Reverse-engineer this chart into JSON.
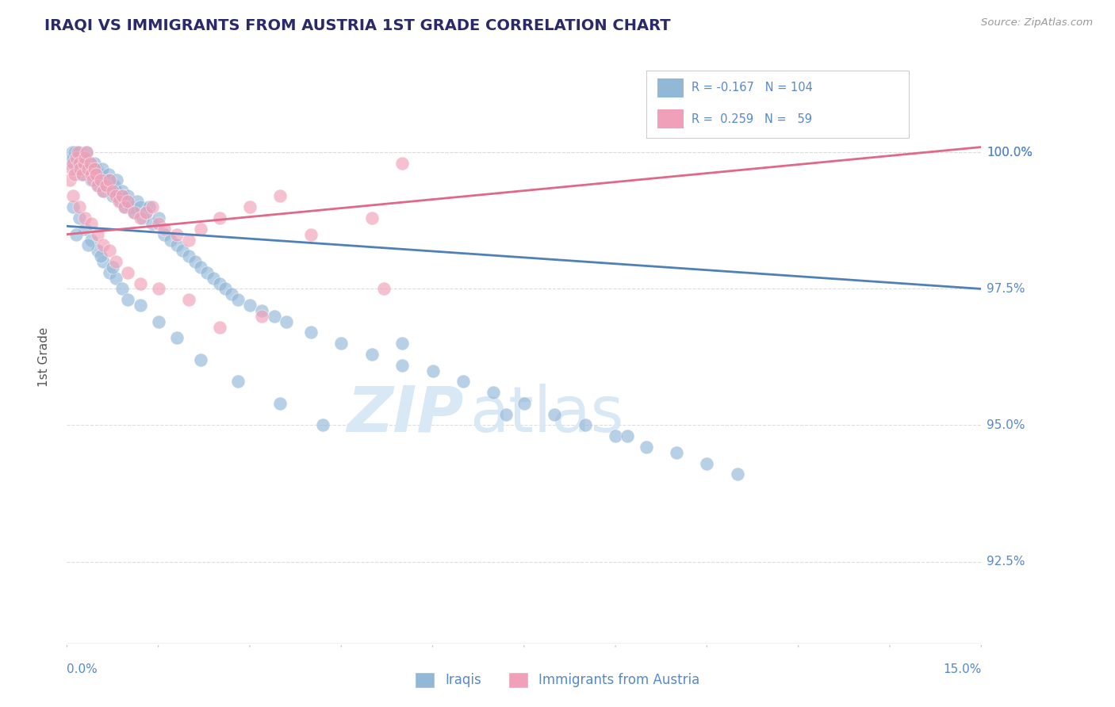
{
  "title": "IRAQI VS IMMIGRANTS FROM AUSTRIA 1ST GRADE CORRELATION CHART",
  "source_text": "Source: ZipAtlas.com",
  "ylabel": "1st Grade",
  "xmin": 0.0,
  "xmax": 15.0,
  "ymin": 91.0,
  "ymax": 101.5,
  "yticks": [
    92.5,
    95.0,
    97.5,
    100.0
  ],
  "ytick_labels": [
    "92.5%",
    "95.0%",
    "97.5%",
    "100.0%"
  ],
  "blue_color": "#92b8d8",
  "pink_color": "#f0a0b8",
  "blue_line_color": "#5080b8",
  "pink_line_color": "#e06888",
  "title_color": "#2a2a6a",
  "axis_label_color": "#5588cc",
  "watermark_color": "#d8e8f4",
  "background_color": "#ffffff",
  "grid_color": "#dddddd",
  "blue_r": -0.167,
  "blue_n": 104,
  "pink_r": 0.259,
  "pink_n": 59,
  "blue_trend_x0": 0.0,
  "blue_trend_y0": 98.65,
  "blue_trend_x1": 15.0,
  "blue_trend_y1": 97.5,
  "pink_trend_x0": 0.0,
  "pink_trend_y0": 98.5,
  "pink_trend_x1": 15.0,
  "pink_trend_y1": 100.1,
  "blue_scatter_x": [
    0.05,
    0.08,
    0.1,
    0.12,
    0.15,
    0.18,
    0.2,
    0.22,
    0.25,
    0.28,
    0.3,
    0.32,
    0.35,
    0.38,
    0.4,
    0.42,
    0.45,
    0.48,
    0.5,
    0.52,
    0.55,
    0.58,
    0.6,
    0.62,
    0.65,
    0.68,
    0.7,
    0.72,
    0.75,
    0.78,
    0.8,
    0.82,
    0.85,
    0.88,
    0.9,
    0.92,
    0.95,
    0.98,
    1.0,
    1.05,
    1.1,
    1.15,
    1.2,
    1.25,
    1.3,
    1.35,
    1.4,
    1.5,
    1.6,
    1.7,
    1.8,
    1.9,
    2.0,
    2.1,
    2.2,
    2.3,
    2.4,
    2.5,
    2.6,
    2.7,
    2.8,
    3.0,
    3.2,
    3.4,
    3.6,
    4.0,
    4.5,
    5.0,
    5.5,
    6.0,
    6.5,
    7.0,
    7.5,
    8.0,
    8.5,
    9.0,
    9.5,
    10.0,
    10.5,
    11.0,
    0.1,
    0.2,
    0.3,
    0.4,
    0.5,
    0.6,
    0.7,
    0.8,
    0.9,
    1.0,
    1.2,
    1.5,
    1.8,
    2.2,
    2.8,
    3.5,
    4.2,
    5.5,
    7.2,
    9.2,
    0.15,
    0.35,
    0.55,
    0.75
  ],
  "blue_scatter_y": [
    99.8,
    100.0,
    99.9,
    100.0,
    99.7,
    99.9,
    100.0,
    99.8,
    99.6,
    99.8,
    99.9,
    100.0,
    99.7,
    99.8,
    99.5,
    99.6,
    99.8,
    99.7,
    99.5,
    99.4,
    99.6,
    99.7,
    99.3,
    99.5,
    99.4,
    99.6,
    99.5,
    99.3,
    99.2,
    99.4,
    99.3,
    99.5,
    99.2,
    99.1,
    99.3,
    99.2,
    99.0,
    99.1,
    99.2,
    99.0,
    98.9,
    99.1,
    99.0,
    98.8,
    98.9,
    99.0,
    98.7,
    98.8,
    98.5,
    98.4,
    98.3,
    98.2,
    98.1,
    98.0,
    97.9,
    97.8,
    97.7,
    97.6,
    97.5,
    97.4,
    97.3,
    97.2,
    97.1,
    97.0,
    96.9,
    96.7,
    96.5,
    96.3,
    96.1,
    96.0,
    95.8,
    95.6,
    95.4,
    95.2,
    95.0,
    94.8,
    94.6,
    94.5,
    94.3,
    94.1,
    99.0,
    98.8,
    98.6,
    98.4,
    98.2,
    98.0,
    97.8,
    97.7,
    97.5,
    97.3,
    97.2,
    96.9,
    96.6,
    96.2,
    95.8,
    95.4,
    95.0,
    96.5,
    95.2,
    94.8,
    98.5,
    98.3,
    98.1,
    97.9
  ],
  "pink_scatter_x": [
    0.05,
    0.08,
    0.1,
    0.12,
    0.15,
    0.18,
    0.2,
    0.22,
    0.25,
    0.28,
    0.3,
    0.32,
    0.35,
    0.38,
    0.4,
    0.42,
    0.45,
    0.48,
    0.5,
    0.55,
    0.6,
    0.65,
    0.7,
    0.75,
    0.8,
    0.85,
    0.9,
    0.95,
    1.0,
    1.1,
    1.2,
    1.3,
    1.4,
    1.5,
    1.6,
    1.8,
    2.0,
    2.2,
    2.5,
    3.0,
    3.5,
    4.0,
    5.0,
    5.5,
    0.1,
    0.2,
    0.3,
    0.4,
    0.5,
    0.6,
    0.7,
    0.8,
    1.0,
    1.2,
    1.5,
    2.0,
    2.5,
    3.2,
    5.2
  ],
  "pink_scatter_y": [
    99.5,
    99.7,
    99.8,
    99.6,
    99.9,
    100.0,
    99.8,
    99.7,
    99.6,
    99.8,
    99.9,
    100.0,
    99.7,
    99.8,
    99.6,
    99.5,
    99.7,
    99.6,
    99.4,
    99.5,
    99.3,
    99.4,
    99.5,
    99.3,
    99.2,
    99.1,
    99.2,
    99.0,
    99.1,
    98.9,
    98.8,
    98.9,
    99.0,
    98.7,
    98.6,
    98.5,
    98.4,
    98.6,
    98.8,
    99.0,
    99.2,
    98.5,
    98.8,
    99.8,
    99.2,
    99.0,
    98.8,
    98.7,
    98.5,
    98.3,
    98.2,
    98.0,
    97.8,
    97.6,
    97.5,
    97.3,
    96.8,
    97.0,
    97.5
  ]
}
